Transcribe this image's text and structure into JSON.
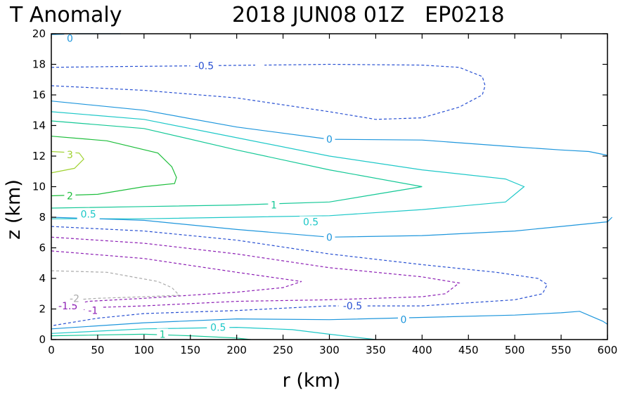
{
  "chart_data": {
    "type": "contour",
    "title": "T Anomaly",
    "subtitle": "2018 JUN08 01Z   EP0218",
    "xlabel": "r (km)",
    "ylabel": "z (km)",
    "xlim": [
      0,
      600
    ],
    "ylim": [
      0,
      20
    ],
    "xticks": [
      "0",
      "50",
      "100",
      "150",
      "200",
      "250",
      "300",
      "350",
      "400",
      "450",
      "500",
      "550",
      "600"
    ],
    "yticks": [
      "0",
      "2",
      "4",
      "6",
      "8",
      "10",
      "12",
      "14",
      "16",
      "18",
      "20"
    ],
    "contours": [
      {
        "level": 0,
        "label": "0",
        "label_at": [
          20,
          19.7
        ],
        "color": "#1e96dc",
        "dash": false,
        "points": [
          [
            0,
            19.95
          ],
          [
            30,
            20.0
          ],
          [
            75,
            20.0
          ]
        ]
      },
      {
        "level": -0.5,
        "label": "-0.5",
        "label_at": [
          165,
          17.9
        ],
        "color": "#2850d2",
        "dash": true,
        "points": [
          [
            0,
            17.8
          ],
          [
            60,
            17.85
          ],
          [
            150,
            17.9
          ],
          [
            220,
            17.95
          ]
        ]
      },
      {
        "level": -0.5,
        "label": "",
        "color": "#2850d2",
        "dash": true,
        "points": [
          [
            0,
            16.6
          ],
          [
            100,
            16.3
          ],
          [
            200,
            15.8
          ],
          [
            300,
            14.9
          ],
          [
            350,
            14.4
          ],
          [
            400,
            14.5
          ],
          [
            440,
            15.2
          ],
          [
            465,
            16.0
          ],
          [
            468,
            16.6
          ],
          [
            465,
            17.2
          ],
          [
            440,
            17.8
          ],
          [
            400,
            17.95
          ],
          [
            300,
            18.0
          ],
          [
            230,
            17.95
          ]
        ]
      },
      {
        "level": 0,
        "label": "0",
        "label_at": [
          300,
          13.1
        ],
        "color": "#1e96dc",
        "dash": false,
        "points": [
          [
            0,
            15.6
          ],
          [
            100,
            15.0
          ],
          [
            200,
            13.9
          ],
          [
            300,
            13.1
          ],
          [
            400,
            13.05
          ],
          [
            500,
            12.6
          ],
          [
            550,
            12.4
          ],
          [
            580,
            12.3
          ],
          [
            600,
            12.05
          ]
        ]
      },
      {
        "level": 0.5,
        "label": "",
        "color": "#1ec8c8",
        "dash": false,
        "points": [
          [
            0,
            14.9
          ],
          [
            100,
            14.4
          ],
          [
            200,
            13.2
          ],
          [
            300,
            12.0
          ],
          [
            400,
            11.1
          ],
          [
            490,
            10.5
          ],
          [
            510,
            10.0
          ],
          [
            490,
            9.0
          ],
          [
            400,
            8.5
          ],
          [
            300,
            8.1
          ],
          [
            200,
            8.0
          ],
          [
            100,
            7.9
          ],
          [
            0,
            7.9
          ]
        ]
      },
      {
        "level": 0.5,
        "label": "0.5",
        "label_at": [
          40,
          8.2
        ],
        "color": "#1ec8c8",
        "dash": false,
        "points": []
      },
      {
        "level": 0.5,
        "label": "0.5",
        "label_at": [
          280,
          7.7
        ],
        "color": "#1ec8c8",
        "dash": false,
        "points": []
      },
      {
        "level": 1,
        "label": "",
        "color": "#14c896",
        "dash": false,
        "points": [
          [
            0,
            14.3
          ],
          [
            100,
            13.8
          ],
          [
            200,
            12.4
          ],
          [
            300,
            11.1
          ],
          [
            400,
            10.0
          ],
          [
            350,
            9.5
          ],
          [
            300,
            9.0
          ],
          [
            200,
            8.8
          ],
          [
            100,
            8.7
          ],
          [
            0,
            8.6
          ]
        ]
      },
      {
        "level": 1,
        "label": "1",
        "label_at": [
          240,
          8.8
        ],
        "color": "#14c896",
        "dash": false,
        "points": []
      },
      {
        "level": 2,
        "label": "2",
        "label_at": [
          20,
          9.4
        ],
        "color": "#1ebe3c",
        "dash": false,
        "points": [
          [
            0,
            13.3
          ],
          [
            60,
            13.0
          ],
          [
            115,
            12.2
          ],
          [
            130,
            11.3
          ],
          [
            135,
            10.6
          ],
          [
            133,
            10.2
          ],
          [
            100,
            10.0
          ],
          [
            50,
            9.5
          ],
          [
            0,
            9.4
          ]
        ]
      },
      {
        "level": 3,
        "label": "3",
        "label_at": [
          20,
          12.1
        ],
        "color": "#a0d232",
        "dash": false,
        "points": [
          [
            0,
            12.3
          ],
          [
            30,
            12.2
          ],
          [
            35,
            11.8
          ],
          [
            25,
            11.2
          ],
          [
            0,
            10.9
          ]
        ]
      },
      {
        "level": 0,
        "label": "0",
        "label_at": [
          300,
          6.7
        ],
        "color": "#1e96dc",
        "dash": false,
        "points": [
          [
            0,
            8.0
          ],
          [
            100,
            7.8
          ],
          [
            200,
            7.2
          ],
          [
            300,
            6.7
          ],
          [
            400,
            6.8
          ],
          [
            500,
            7.1
          ],
          [
            550,
            7.4
          ],
          [
            600,
            7.7
          ],
          [
            605,
            8.0
          ]
        ]
      },
      {
        "level": -0.5,
        "label": "-0.5",
        "label_at": [
          325,
          2.2
        ],
        "color": "#2850d2",
        "dash": true,
        "points": [
          [
            0,
            7.4
          ],
          [
            100,
            7.1
          ],
          [
            200,
            6.5
          ],
          [
            300,
            5.6
          ],
          [
            400,
            4.9
          ],
          [
            480,
            4.4
          ],
          [
            525,
            4.0
          ],
          [
            535,
            3.6
          ],
          [
            530,
            3.0
          ],
          [
            500,
            2.6
          ],
          [
            400,
            2.2
          ],
          [
            300,
            2.2
          ],
          [
            200,
            1.9
          ],
          [
            100,
            1.7
          ],
          [
            50,
            1.4
          ],
          [
            0,
            0.9
          ]
        ]
      },
      {
        "level": -1,
        "label": "",
        "color": "#8c1eb4",
        "dash": true,
        "points": [
          [
            0,
            6.7
          ],
          [
            100,
            6.3
          ],
          [
            200,
            5.6
          ],
          [
            300,
            4.7
          ],
          [
            400,
            4.1
          ],
          [
            430,
            3.8
          ],
          [
            440,
            3.7
          ],
          [
            425,
            3.0
          ],
          [
            400,
            2.8
          ],
          [
            300,
            2.6
          ],
          [
            200,
            2.5
          ],
          [
            100,
            2.2
          ],
          [
            50,
            2.1
          ],
          [
            35,
            1.95
          ]
        ]
      },
      {
        "level": -1,
        "label": "-1",
        "label_at": [
          45,
          1.9
        ],
        "color": "#8c1eb4",
        "dash": true,
        "points": []
      },
      {
        "level": -1.5,
        "label": "",
        "color": "#8c1eb4",
        "dash": true,
        "points": [
          [
            0,
            5.8
          ],
          [
            100,
            5.3
          ],
          [
            200,
            4.4
          ],
          [
            270,
            3.8
          ],
          [
            250,
            3.4
          ],
          [
            200,
            3.1
          ],
          [
            100,
            2.7
          ],
          [
            40,
            2.5
          ],
          [
            25,
            2.3
          ]
        ]
      },
      {
        "level": -1.5,
        "label": "-1.5",
        "label_at": [
          18,
          2.2
        ],
        "color": "#8c1eb4",
        "dash": true,
        "points": []
      },
      {
        "level": -2,
        "label": "",
        "color": "#aaaaaa",
        "dash": true,
        "points": [
          [
            0,
            4.5
          ],
          [
            60,
            4.4
          ],
          [
            115,
            3.8
          ],
          [
            130,
            3.4
          ],
          [
            138,
            2.9
          ],
          [
            100,
            2.8
          ],
          [
            50,
            2.7
          ],
          [
            25,
            2.6
          ]
        ]
      },
      {
        "level": -2,
        "label": "-2",
        "label_at": [
          25,
          2.7
        ],
        "color": "#aaaaaa",
        "dash": true,
        "points": []
      },
      {
        "level": 0,
        "label": "0",
        "label_at": [
          380,
          1.3
        ],
        "color": "#1e96dc",
        "dash": false,
        "points": [
          [
            0,
            0.7
          ],
          [
            100,
            1.1
          ],
          [
            200,
            1.35
          ],
          [
            300,
            1.3
          ],
          [
            400,
            1.45
          ],
          [
            500,
            1.6
          ],
          [
            550,
            1.75
          ],
          [
            570,
            1.85
          ],
          [
            595,
            1.2
          ],
          [
            600,
            1.0
          ]
        ]
      },
      {
        "level": 0.5,
        "label": "0.5",
        "label_at": [
          180,
          0.8
        ],
        "color": "#1ec8c8",
        "dash": false,
        "points": [
          [
            0,
            0.4
          ],
          [
            100,
            0.7
          ],
          [
            200,
            0.8
          ],
          [
            260,
            0.65
          ],
          [
            300,
            0.35
          ],
          [
            350,
            0.0
          ]
        ]
      },
      {
        "level": 1,
        "label": "1",
        "label_at": [
          120,
          0.35
        ],
        "color": "#14c896",
        "dash": false,
        "points": [
          [
            0,
            0.25
          ],
          [
            100,
            0.35
          ],
          [
            150,
            0.25
          ],
          [
            200,
            0.1
          ],
          [
            215,
            0.0
          ]
        ]
      }
    ]
  }
}
